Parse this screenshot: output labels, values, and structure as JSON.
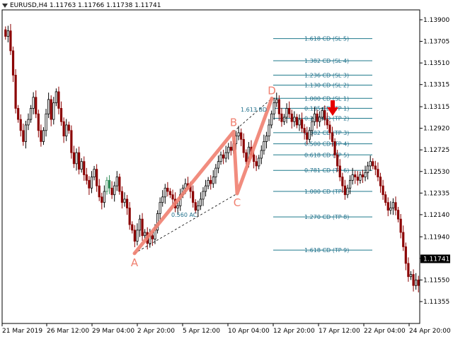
{
  "header": {
    "symbol_info": "EURUSD,H4  1.11763 1.11766 1.11738 1.11741"
  },
  "chart_data": {
    "type": "candlestick",
    "symbol": "EURUSD",
    "timeframe": "H4",
    "ohlc_readout": {
      "open": 1.11763,
      "high": 1.11766,
      "low": 1.11738,
      "close": 1.11741
    },
    "current_price": "1.11741",
    "y_ticks": [
      "1.13900",
      "1.13705",
      "1.13510",
      "1.13315",
      "1.13115",
      "1.12920",
      "1.12725",
      "1.12530",
      "1.12335",
      "1.12140",
      "1.11940",
      "1.11745",
      "1.11550",
      "1.11355"
    ],
    "x_ticks": [
      "21 Mar 2019",
      "26 Mar 12:00",
      "29 Mar 04:00",
      "2 Apr 20:00",
      "5 Apr 12:00",
      "10 Apr 04:00",
      "12 Apr 20:00",
      "17 Apr 12:00",
      "22 Apr 04:00",
      "24 Apr 20:00"
    ],
    "pattern": {
      "points": [
        {
          "label": "A",
          "price": 1.1179
        },
        {
          "label": "B",
          "price": 1.1289
        },
        {
          "label": "C",
          "price": 1.1233
        },
        {
          "label": "D",
          "price": 1.1319
        }
      ],
      "ratios": [
        {
          "label": "0.560 AC"
        },
        {
          "label": "1.613 BD"
        }
      ]
    },
    "levels": [
      {
        "label": "1.618 CD (SL 5)",
        "price": 1.1373
      },
      {
        "label": "1.382 CD (SL 4)",
        "price": 1.1353
      },
      {
        "label": "1.236 CD (SL 3)",
        "price": 1.134
      },
      {
        "label": "1.130 CD (SL 2)",
        "price": 1.1331
      },
      {
        "label": "1.000 CD (SL 1)",
        "price": 1.1319
      },
      {
        "label": "0.135 CD (TP 1)",
        "price": 1.131
      },
      {
        "label": "0.236 CD (TP 2)",
        "price": 1.1301
      },
      {
        "label": "0.382 CD (TP 3)",
        "price": 1.1288
      },
      {
        "label": "0.500 CD (TP 4)",
        "price": 1.1278
      },
      {
        "label": "0.618 CD (TP 5)",
        "price": 1.1268
      },
      {
        "label": "0.781 CD (TP 6)",
        "price": 1.1254
      },
      {
        "label": "1.000 CD (TP 7)",
        "price": 1.1235
      },
      {
        "label": "1.270 CD (TP 8)",
        "price": 1.1212
      },
      {
        "label": "1.618 CD (TP 9)",
        "price": 1.1182
      }
    ],
    "closes": [
      1.1375,
      1.138,
      1.1362,
      1.134,
      1.131,
      1.13,
      1.129,
      1.128,
      1.1295,
      1.13,
      1.131,
      1.132,
      1.1305,
      1.129,
      1.128,
      1.129,
      1.1305,
      1.1318,
      1.13,
      1.1315,
      1.1325,
      1.131,
      1.1298,
      1.1285,
      1.1295,
      1.129,
      1.127,
      1.126,
      1.127,
      1.1255,
      1.1262,
      1.125,
      1.1245,
      1.1238,
      1.1248,
      1.1255,
      1.124,
      1.123,
      1.1225,
      1.1235,
      1.1245,
      1.1238,
      1.1232,
      1.124,
      1.1248,
      1.1235,
      1.1225,
      1.1228,
      1.122,
      1.1205,
      1.12,
      1.119,
      1.12,
      1.121,
      1.1195,
      1.1198,
      1.1188,
      1.1195,
      1.1192,
      1.12,
      1.1215,
      1.1225,
      1.123,
      1.1238,
      1.1235,
      1.1232,
      1.1228,
      1.122,
      1.1222,
      1.1232,
      1.1238,
      1.1242,
      1.124,
      1.1235,
      1.1225,
      1.1218,
      1.1222,
      1.1228,
      1.1235,
      1.124,
      1.1245,
      1.1242,
      1.1248,
      1.1256,
      1.1262,
      1.1268,
      1.1265,
      1.127,
      1.1275,
      1.1272,
      1.1278,
      1.1285,
      1.1288,
      1.1282,
      1.127,
      1.1262,
      1.1275,
      1.1268,
      1.1262,
      1.1258,
      1.1265,
      1.1272,
      1.128,
      1.1285,
      1.1295,
      1.1305,
      1.1315,
      1.1318,
      1.1305,
      1.1298,
      1.1302,
      1.131,
      1.1305,
      1.1298,
      1.1302,
      1.1295,
      1.13,
      1.1292,
      1.1288,
      1.1282,
      1.129,
      1.1298,
      1.1305,
      1.1298,
      1.1302,
      1.1308,
      1.13,
      1.1295,
      1.1288,
      1.128,
      1.1268,
      1.1258,
      1.1248,
      1.124,
      1.1232,
      1.1238,
      1.1245,
      1.125,
      1.1248,
      1.1245,
      1.125,
      1.1248,
      1.1252,
      1.1258,
      1.1262,
      1.1258,
      1.1255,
      1.1248,
      1.124,
      1.1232,
      1.1225,
      1.1218,
      1.122,
      1.1225,
      1.1218,
      1.121,
      1.1198,
      1.1185,
      1.117,
      1.1158,
      1.116,
      1.115,
      1.1155,
      1.115
    ],
    "colors": {
      "up": "#000000",
      "down": "#8b0000",
      "bull_accent": "#2e8b57",
      "pattern": "#f08070",
      "level_line": "#1f7a8c",
      "level_text": "#1f6f8b",
      "arrow": "#e60000"
    }
  }
}
